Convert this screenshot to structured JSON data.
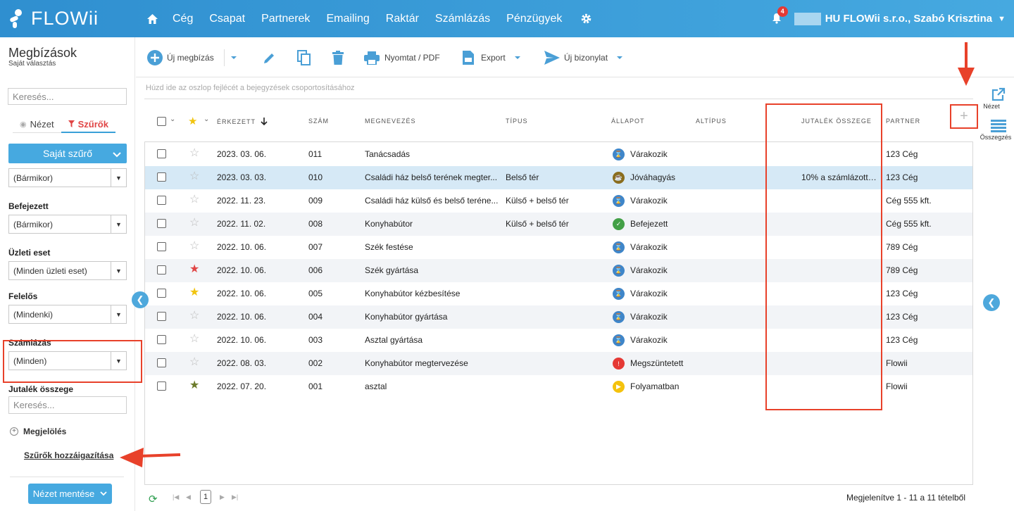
{
  "app": {
    "logo": "FLOWii"
  },
  "nav": {
    "items": [
      "Cég",
      "Csapat",
      "Partnerek",
      "Emailing",
      "Raktár",
      "Számlázás",
      "Pénzügyek"
    ]
  },
  "user": {
    "notifications": "4",
    "company": "HU FLOWii s.r.o., Szabó Krisztina"
  },
  "page": {
    "title": "Megbízások",
    "subtitle": "Saját választás"
  },
  "sidebar": {
    "search_placeholder": "Keresés...",
    "tab_view": "Nézet",
    "tab_filters": "Szűrők",
    "own_filter": "Saját szűrő",
    "select_first": "(Bármikor)",
    "filters": [
      {
        "label": "Befejezett",
        "value": "(Bármikor)"
      },
      {
        "label": "Üzleti eset",
        "value": "(Minden üzleti eset)"
      },
      {
        "label": "Felelős",
        "value": "(Mindenki)"
      },
      {
        "label": "Számlázás",
        "value": "(Minden)"
      }
    ],
    "commission_label": "Jutalék összege",
    "commission_placeholder": "Keresés...",
    "marking": "Megjelölés",
    "assign_filters": "Szűrők hozzáigazítása",
    "save_view": "Nézet mentése"
  },
  "toolbar": {
    "new_order": "Új megbízás",
    "print": "Nyomtat / PDF",
    "export": "Export",
    "new_document": "Új bizonylat"
  },
  "grid": {
    "group_hint": "Húzd ide az oszlop fejlécét a bejegyzések csoportosításához",
    "columns": {
      "received": "Érkezett",
      "number": "Szám",
      "name": "Megnevezés",
      "type": "Típus",
      "status": "Állapot",
      "subtype": "Altípus",
      "commission": "Jutalék összege",
      "partner": "Partner"
    },
    "rows": [
      {
        "star": "none",
        "date": "2023. 03. 06.",
        "num": "011",
        "name": "Tanácsadás",
        "type": "",
        "status": "Várakozik",
        "status_kind": "wait",
        "commission": "",
        "partner": "123 Cég"
      },
      {
        "star": "none",
        "date": "2023. 03. 03.",
        "num": "010",
        "name": "Családi ház belső terének megter...",
        "type": "Belső tér",
        "status": "Jóváhagyás",
        "status_kind": "approve",
        "commission": "10% a számlázott ...",
        "partner": "123 Cég"
      },
      {
        "star": "none",
        "date": "2022. 11. 23.",
        "num": "009",
        "name": "Családi ház külső és belső teréne...",
        "type": "Külső + belső tér",
        "status": "Várakozik",
        "status_kind": "wait",
        "commission": "",
        "partner": "Cég 555 kft."
      },
      {
        "star": "none",
        "date": "2022. 11. 02.",
        "num": "008",
        "name": "Konyhabútor",
        "type": "Külső + belső tér",
        "status": "Befejezett",
        "status_kind": "done",
        "commission": "",
        "partner": "Cég 555 kft."
      },
      {
        "star": "none",
        "date": "2022. 10. 06.",
        "num": "007",
        "name": "Szék festése",
        "type": "",
        "status": "Várakozik",
        "status_kind": "wait",
        "commission": "",
        "partner": "789 Cég"
      },
      {
        "star": "red",
        "date": "2022. 10. 06.",
        "num": "006",
        "name": "Szék gyártása",
        "type": "",
        "status": "Várakozik",
        "status_kind": "wait",
        "commission": "",
        "partner": "789 Cég"
      },
      {
        "star": "yellow",
        "date": "2022. 10. 06.",
        "num": "005",
        "name": "Konyhabútor kézbesítése",
        "type": "",
        "status": "Várakozik",
        "status_kind": "wait",
        "commission": "",
        "partner": "123 Cég"
      },
      {
        "star": "none",
        "date": "2022. 10. 06.",
        "num": "004",
        "name": "Konyhabútor gyártása",
        "type": "",
        "status": "Várakozik",
        "status_kind": "wait",
        "commission": "",
        "partner": "123 Cég"
      },
      {
        "star": "none",
        "date": "2022. 10. 06.",
        "num": "003",
        "name": "Asztal gyártása",
        "type": "",
        "status": "Várakozik",
        "status_kind": "wait",
        "commission": "",
        "partner": "123 Cég"
      },
      {
        "star": "none",
        "date": "2022. 08. 03.",
        "num": "002",
        "name": "Konyhabútor megtervezése",
        "type": "",
        "status": "Megszüntetett",
        "status_kind": "cancel",
        "commission": "",
        "partner": "Flowii"
      },
      {
        "star": "olive",
        "date": "2022. 07. 20.",
        "num": "001",
        "name": "asztal",
        "type": "",
        "status": "Folyamatban",
        "status_kind": "progress",
        "commission": "",
        "partner": "Flowii"
      }
    ]
  },
  "pager": {
    "page": "1",
    "info": "Megjelenítve 1 - 11 a 11 tételből"
  },
  "right_panel": {
    "view": "Nézet",
    "summary": "Összegzés"
  },
  "colors": {
    "brand": "#46a9e0",
    "highlight": "#e8412a",
    "selected_row": "#d6e9f6"
  }
}
